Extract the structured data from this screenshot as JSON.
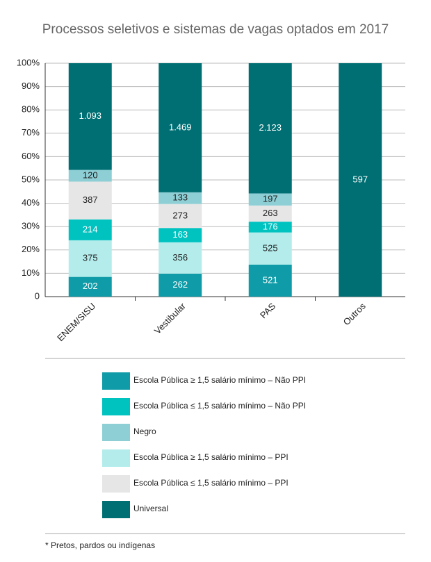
{
  "chart_data": {
    "type": "stacked_bar_percent",
    "title": "Processos seletivos e sistemas de vagas optados em 2017",
    "categories": [
      "ENEM/SISU",
      "Vestibular",
      "PAS",
      "Outros"
    ],
    "series": [
      {
        "name": "Escola Pública ≥ 1,5 salário mínimo – Não PPI",
        "color": "#0f9ba7",
        "values": [
          202,
          262,
          521,
          null
        ]
      },
      {
        "name": "Escola Pública ≤ 1,5 salário mínimo – Não PPI",
        "color": "#00c3c0",
        "values": [
          214,
          163,
          176,
          null
        ]
      },
      {
        "name": "Negro",
        "color": "#8dcfd5",
        "values": [
          120,
          133,
          197,
          null
        ]
      },
      {
        "name": "Escola Pública ≥ 1,5 salário mínimo – PPI",
        "color": "#b4ecec",
        "values": [
          375,
          356,
          525,
          null
        ]
      },
      {
        "name": "Escola Pública ≤ 1,5 salário mínimo – PPI",
        "color": "#e6e6e6",
        "values": [
          387,
          273,
          263,
          null
        ]
      },
      {
        "name": "Universal",
        "color": "#006f73",
        "values": [
          1093,
          1469,
          2123,
          597
        ],
        "value_labels": [
          "1.093",
          "1.469",
          "2.123",
          "597"
        ]
      }
    ],
    "ylim": [
      0,
      100
    ],
    "yticks": [
      0,
      {
        "value": 10,
        "label": "10%"
      },
      {
        "value": 20,
        "label": "20%"
      },
      {
        "value": 30,
        "label": "30%"
      },
      {
        "value": 40,
        "label": "40%"
      },
      {
        "value": 50,
        "label": "50%"
      },
      {
        "value": 60,
        "label": "60%"
      },
      {
        "value": 70,
        "label": "70%"
      },
      {
        "value": 80,
        "label": "80%"
      },
      {
        "value": 90,
        "label": "90%"
      },
      {
        "value": 100,
        "label": "100%"
      }
    ],
    "grid": true,
    "footnote": "* Pretos, pardos ou indígenas"
  }
}
